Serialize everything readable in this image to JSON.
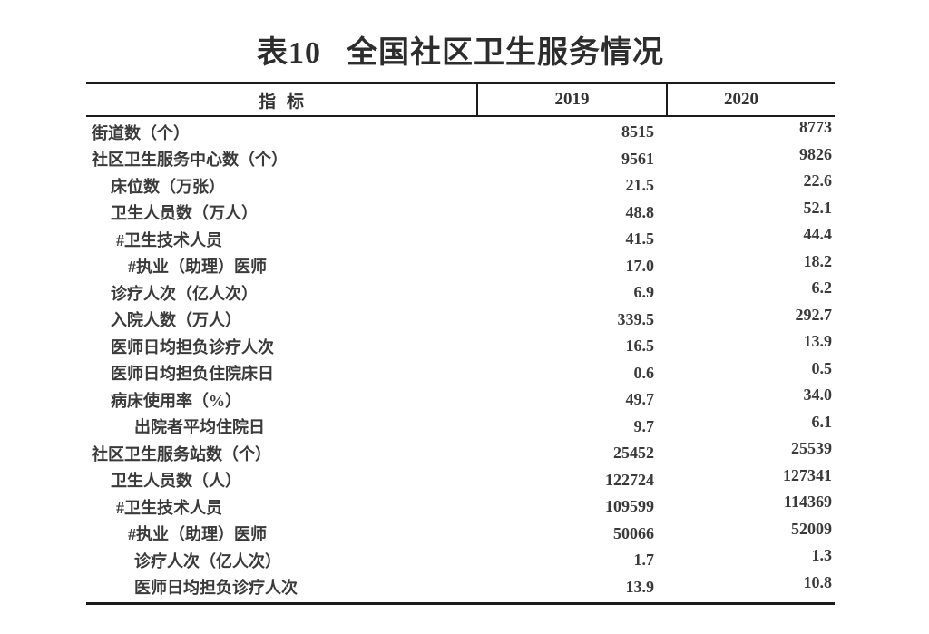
{
  "page": {
    "background": "#ffffff",
    "text_color": "#3a3a3a",
    "rule_color": "#1b1b1b"
  },
  "table": {
    "title_no": "表10",
    "title_text": "全国社区卫生服务情况",
    "columns": [
      "指标",
      "2019",
      "2020"
    ],
    "rows": [
      {
        "indicator": "街道数（个）",
        "indent": "0",
        "y2019": "8515",
        "y2020": "8773"
      },
      {
        "indicator": "社区卫生服务中心数（个）",
        "indent": "0",
        "y2019": "9561",
        "y2020": "9826"
      },
      {
        "indicator": "床位数（万张）",
        "indent": "1",
        "y2019": "21.5",
        "y2020": "22.6"
      },
      {
        "indicator": "卫生人员数（万人）",
        "indent": "1",
        "y2019": "48.8",
        "y2020": "52.1"
      },
      {
        "indicator": "#卫生技术人员",
        "indent": "15",
        "y2019": "41.5",
        "y2020": "44.4"
      },
      {
        "indicator": "#执业（助理）医师",
        "indent": "2",
        "y2019": "17.0",
        "y2020": "18.2"
      },
      {
        "indicator": "诊疗人次（亿人次）",
        "indent": "1",
        "y2019": "6.9",
        "y2020": "6.2"
      },
      {
        "indicator": "入院人数（万人）",
        "indent": "1",
        "y2019": "339.5",
        "y2020": "292.7"
      },
      {
        "indicator": "医师日均担负诊疗人次",
        "indent": "1",
        "y2019": "16.5",
        "y2020": "13.9"
      },
      {
        "indicator": "医师日均担负住院床日",
        "indent": "1",
        "y2019": "0.6",
        "y2020": "0.5"
      },
      {
        "indicator": "病床使用率（%）",
        "indent": "1",
        "y2019": "49.7",
        "y2020": "34.0"
      },
      {
        "indicator": "出院者平均住院日",
        "indent": "25",
        "y2019": "9.7",
        "y2020": "6.1"
      },
      {
        "indicator": "社区卫生服务站数（个）",
        "indent": "0",
        "y2019": "25452",
        "y2020": "25539"
      },
      {
        "indicator": "卫生人员数（人）",
        "indent": "1",
        "y2019": "122724",
        "y2020": "127341"
      },
      {
        "indicator": "#卫生技术人员",
        "indent": "15",
        "y2019": "109599",
        "y2020": "114369"
      },
      {
        "indicator": "#执业（助理）医师",
        "indent": "2",
        "y2019": "50066",
        "y2020": "52009"
      },
      {
        "indicator": "诊疗人次（亿人次）",
        "indent": "25",
        "y2019": "1.7",
        "y2020": "1.3"
      },
      {
        "indicator": "医师日均担负诊疗人次",
        "indent": "25",
        "y2019": "13.9",
        "y2020": "10.8"
      }
    ]
  }
}
